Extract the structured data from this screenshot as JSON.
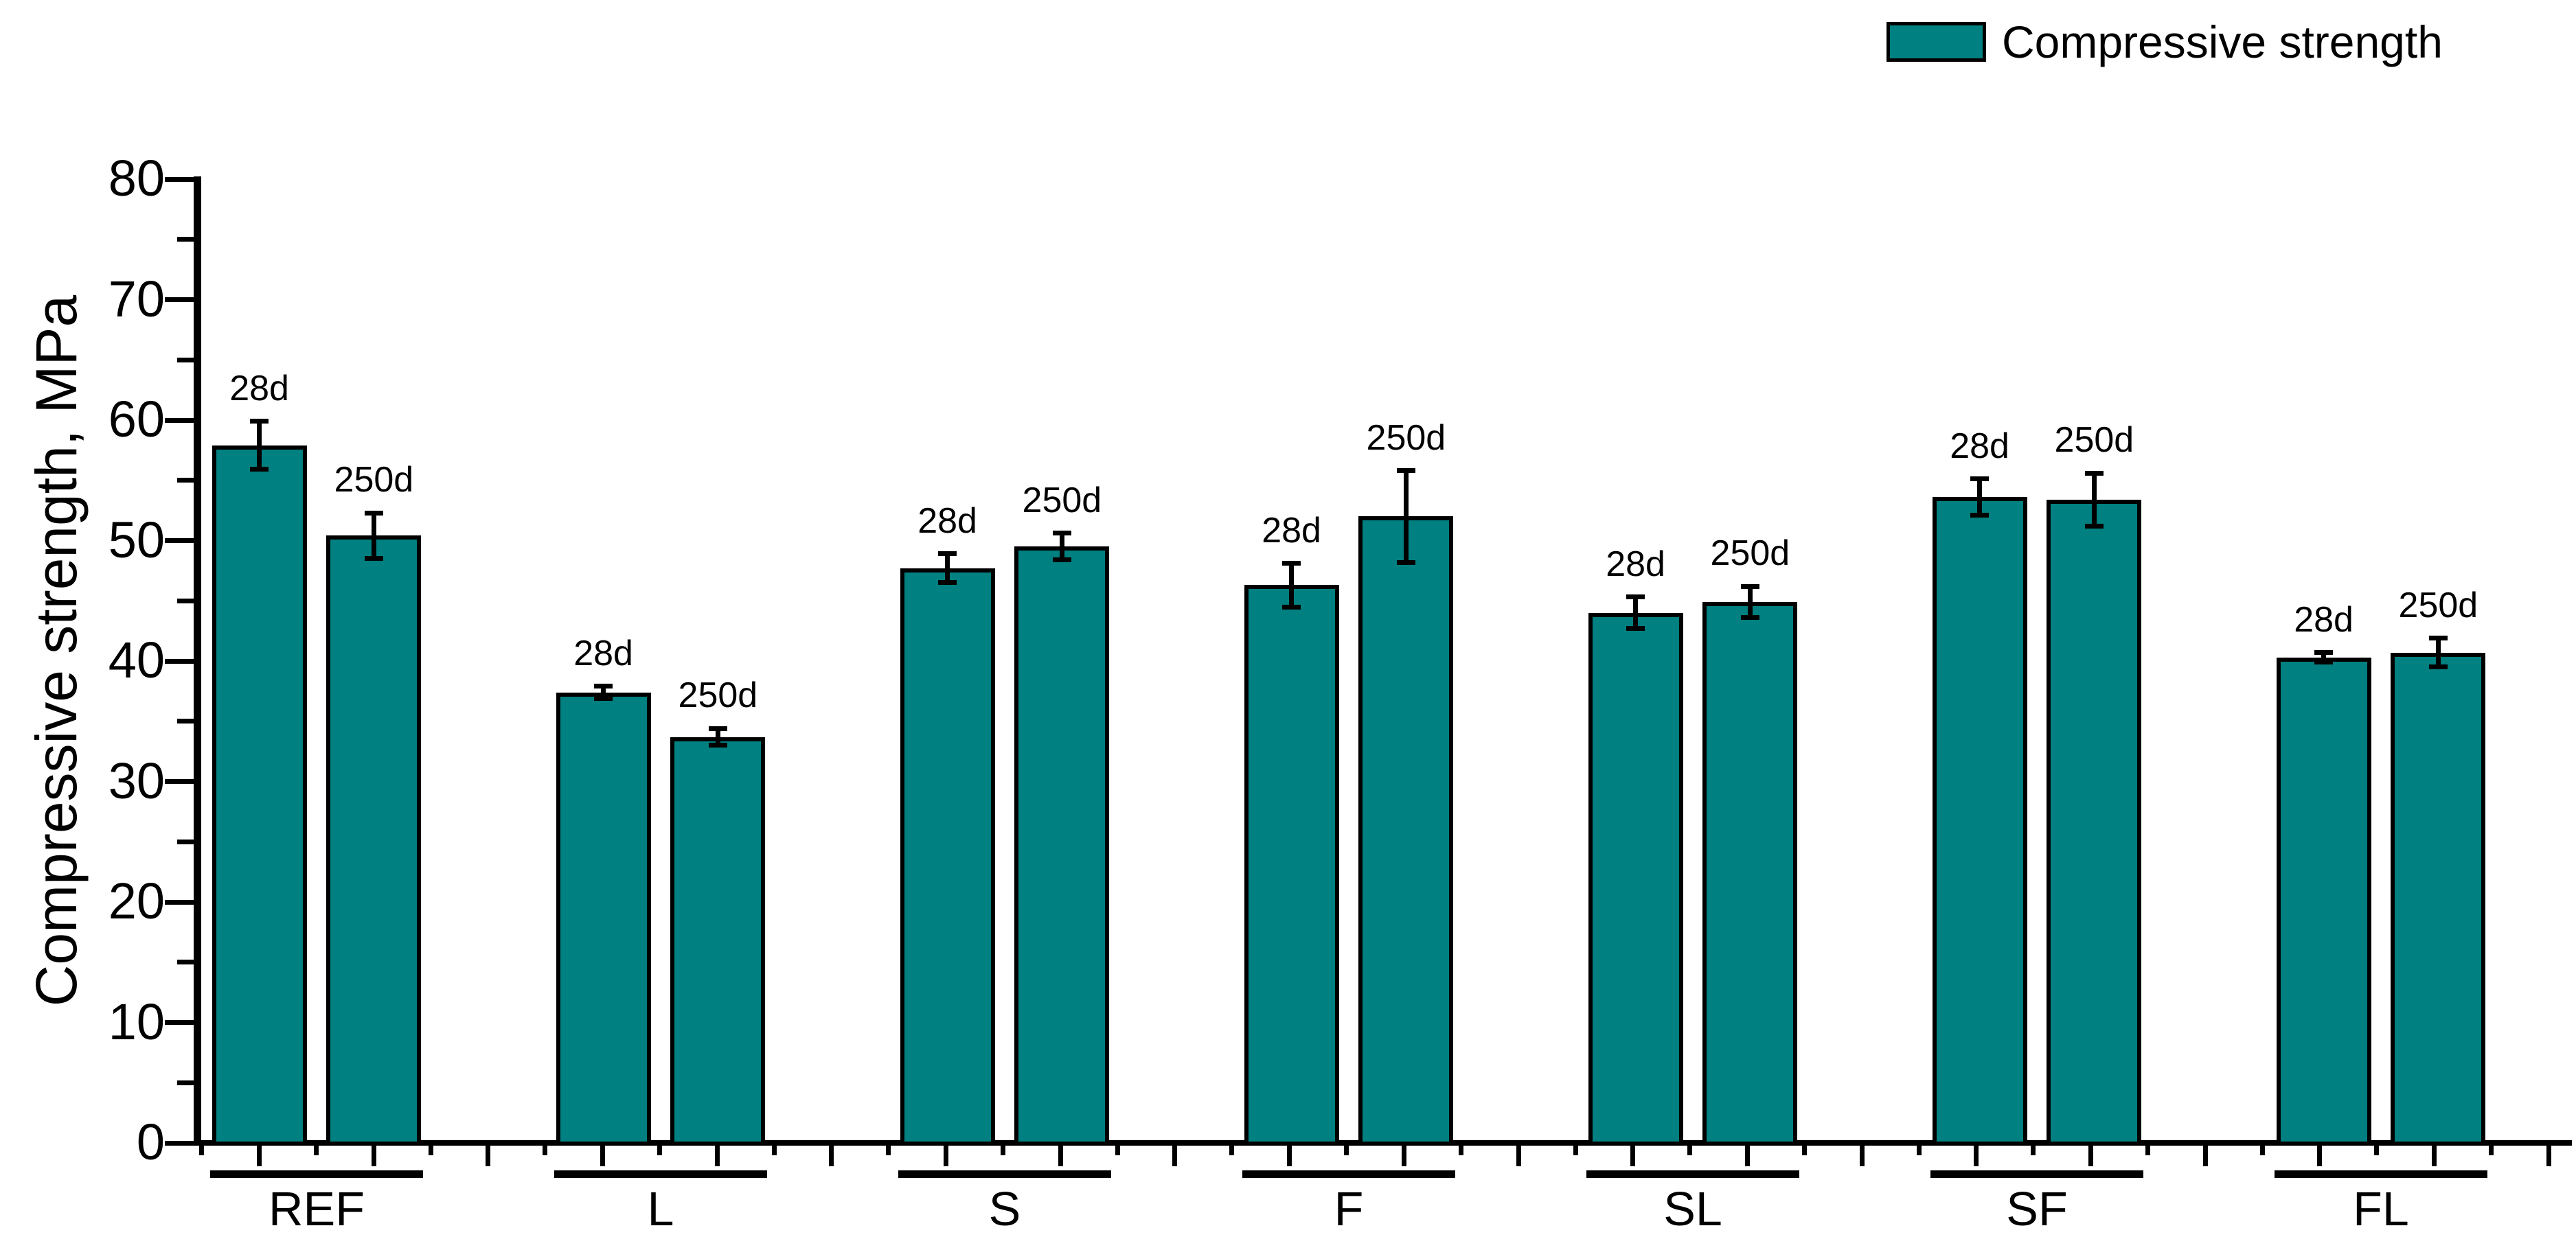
{
  "chart_data": {
    "type": "bar",
    "title": "",
    "xlabel": "",
    "ylabel": "Compressive strength, MPa",
    "ylim": [
      0,
      80
    ],
    "y_major_tick_step": 10,
    "y_minor_tick_step": 5,
    "grid": false,
    "legend": {
      "label": "Compressive strength",
      "position": "top-right"
    },
    "series_labels": [
      "28d",
      "250d"
    ],
    "categories": [
      "REF",
      "L",
      "S",
      "F",
      "SL",
      "SF",
      "FL"
    ],
    "series": [
      {
        "name": "28d",
        "values": [
          57.9,
          37.4,
          47.7,
          46.3,
          44.0,
          53.6,
          40.3
        ],
        "errors": [
          2.0,
          0.5,
          1.2,
          1.8,
          1.3,
          1.5,
          0.4
        ]
      },
      {
        "name": "250d",
        "values": [
          50.4,
          33.7,
          49.5,
          52.0,
          44.9,
          53.4,
          40.7
        ],
        "errors": [
          1.9,
          0.7,
          1.1,
          3.8,
          1.3,
          2.2,
          1.2
        ]
      }
    ],
    "colors": {
      "bar_fill": "#008080",
      "bar_outline": "#000000",
      "axis": "#000000",
      "background": "#ffffff"
    }
  }
}
